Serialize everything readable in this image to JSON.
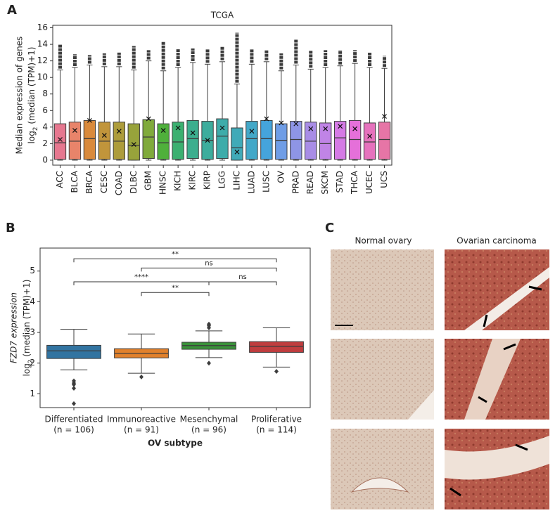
{
  "panels": {
    "a": "A",
    "b": "B",
    "c": "C"
  },
  "chart_data": [
    {
      "type": "box",
      "title": "TCGA",
      "y_label": "Median expression of genes",
      "y_label_parts": [
        "log",
        "2",
        " (median (TPM)+1)"
      ],
      "categories": [
        "ACC",
        "BLCA",
        "BRCA",
        "CESC",
        "COAD",
        "DLBC",
        "GBM",
        "HNSC",
        "KICH",
        "KIRC",
        "KIRP",
        "LGG",
        "LIHC",
        "LUAD",
        "LUSC",
        "OV",
        "PRAD",
        "READ",
        "SKCM",
        "STAD",
        "THCA",
        "UCEC",
        "UCS"
      ],
      "colors": [
        "#e6778f",
        "#e8846a",
        "#d98a3c",
        "#c1953b",
        "#ad9c3b",
        "#98a33b",
        "#80aa3b",
        "#4fb03b",
        "#3bb070",
        "#3cae8e",
        "#3dad9d",
        "#3eacaa",
        "#40aab8",
        "#42a8c8",
        "#45a4dc",
        "#6f9de6",
        "#8e95e6",
        "#a88de6",
        "#c084e6",
        "#d57ae5",
        "#e570d9",
        "#e672bd",
        "#e675a6"
      ],
      "whislo": [
        0,
        0,
        0,
        0,
        0,
        0,
        0,
        0,
        0,
        0,
        0,
        0,
        0,
        0,
        0,
        0,
        0,
        0,
        0,
        0,
        0,
        0,
        0
      ],
      "q1": [
        0.1,
        0.1,
        0.1,
        0.1,
        0.1,
        0,
        0.2,
        0.1,
        0.1,
        0.2,
        0.1,
        0.2,
        0,
        0.1,
        0.1,
        0.1,
        0.1,
        0.1,
        0.1,
        0.1,
        0.1,
        0.1,
        0.1
      ],
      "median": [
        2.1,
        2.3,
        2.6,
        2.3,
        2.3,
        1.8,
        2.8,
        2.1,
        2.2,
        2.6,
        2.4,
        2.9,
        1.5,
        2.6,
        2.6,
        2.4,
        2.5,
        2.3,
        2.0,
        2.7,
        2.5,
        2.2,
        2.5
      ],
      "q3": [
        4.4,
        4.6,
        4.8,
        4.6,
        4.6,
        4.4,
        4.9,
        4.4,
        4.6,
        4.8,
        4.7,
        5.0,
        3.9,
        4.7,
        4.8,
        4.4,
        4.7,
        4.6,
        4.5,
        4.7,
        4.8,
        4.5,
        4.6
      ],
      "whishi": [
        10.9,
        11.2,
        11.5,
        11.3,
        11.3,
        10.9,
        12.0,
        10.8,
        11.2,
        11.8,
        11.6,
        11.9,
        9.2,
        11.6,
        11.9,
        10.8,
        11.5,
        11.0,
        11.2,
        11.4,
        11.7,
        11.2,
        11.1
      ],
      "max": [
        14,
        12.8,
        12.7,
        12.9,
        13.0,
        13.8,
        13.3,
        14.3,
        13.4,
        13.5,
        13.4,
        13.7,
        15.4,
        13.4,
        13.3,
        12.9,
        14.6,
        13.3,
        13.3,
        13.3,
        13.3,
        13.0,
        12.6
      ],
      "mean": [
        2.5,
        3.6,
        4.8,
        3.0,
        3.5,
        1.9,
        5.0,
        3.6,
        3.9,
        3.3,
        2.4,
        3.9,
        1.0,
        3.5,
        5.0,
        4.5,
        4.4,
        3.8,
        3.8,
        4.1,
        3.8,
        2.9,
        5.3
      ],
      "ylim": [
        -0.6,
        16.3
      ],
      "yticks": [
        0,
        2,
        4,
        6,
        8,
        10,
        12,
        14,
        16
      ]
    },
    {
      "type": "box",
      "y_label": "FZD7 expression",
      "y_label_parts": [
        "log",
        "2",
        " (median (TPM)+1)"
      ],
      "x_label": "OV subtype",
      "categories": [
        "Differentiated",
        "Immunoreactive",
        "Mesenchymal",
        "Proliferative"
      ],
      "n_labels": [
        "(n = 106)",
        "(n = 91)",
        "(n = 96)",
        "(n = 114)"
      ],
      "colors": [
        "#3274a1",
        "#e1812c",
        "#3a923a",
        "#c03d3e"
      ],
      "whislo": [
        1.78,
        1.67,
        2.18,
        1.87
      ],
      "q1": [
        2.15,
        2.17,
        2.45,
        2.35
      ],
      "median": [
        2.4,
        2.32,
        2.57,
        2.55
      ],
      "q3": [
        2.58,
        2.47,
        2.68,
        2.7
      ],
      "whishi": [
        3.1,
        2.95,
        3.05,
        3.15
      ],
      "outliers": [
        [
          1.42,
          1.35,
          1.3,
          1.18,
          0.68
        ],
        [
          1.55
        ],
        [
          3.27,
          3.22,
          3.15,
          2.0
        ],
        [
          1.73
        ]
      ],
      "significance": [
        "**",
        "ns",
        "****",
        "ns",
        "**"
      ],
      "ylim": [
        0.55,
        5.75
      ],
      "yticks": [
        1,
        2,
        3,
        4,
        5
      ]
    }
  ],
  "images": {
    "columns": [
      "Normal ovary",
      "Ovarian carcinoma"
    ]
  }
}
